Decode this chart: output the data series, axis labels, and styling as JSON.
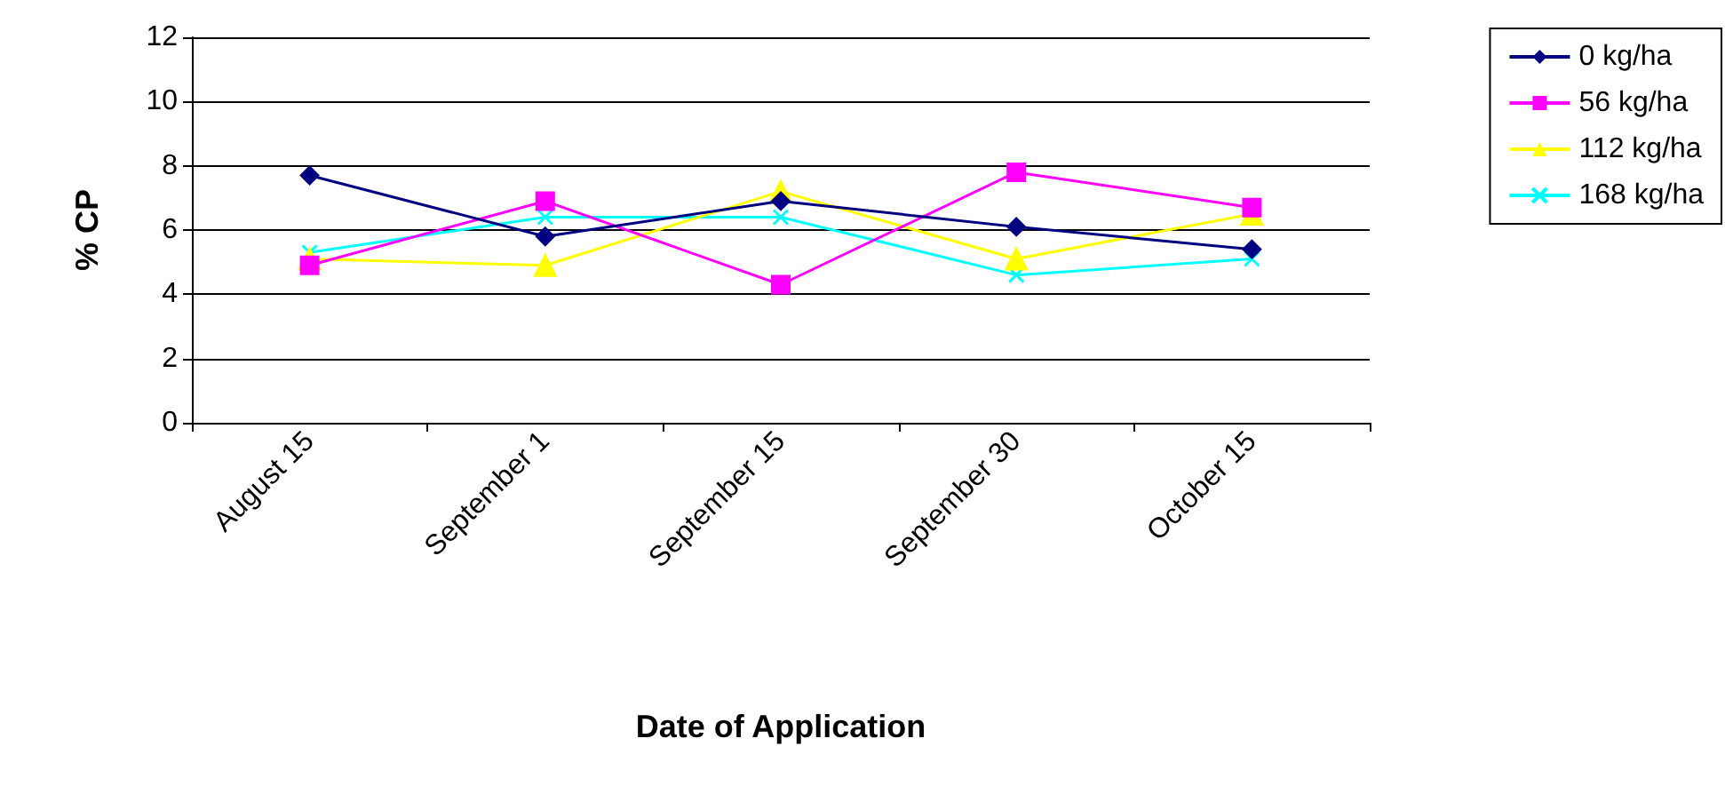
{
  "chart_data": {
    "type": "line",
    "xlabel": "Date of Application",
    "ylabel": "% CP",
    "categories": [
      "August 15",
      "September 1",
      "September 15",
      "September 30",
      "October 15"
    ],
    "series": [
      {
        "name": "0 kg/ha",
        "color": "#000080",
        "marker": "diamond",
        "values": [
          7.7,
          5.8,
          6.9,
          6.1,
          5.4
        ]
      },
      {
        "name": "56 kg/ha",
        "color": "#ff00ff",
        "marker": "square",
        "values": [
          4.9,
          6.9,
          4.3,
          7.8,
          6.7
        ]
      },
      {
        "name": "112 kg/ha",
        "color": "#ffff00",
        "marker": "triangle",
        "values": [
          5.1,
          4.9,
          7.2,
          5.1,
          6.5
        ]
      },
      {
        "name": "168 kg/ha",
        "color": "#00ffff",
        "marker": "cross",
        "values": [
          5.3,
          6.4,
          6.4,
          4.6,
          5.1
        ]
      }
    ],
    "ylim": [
      0,
      12
    ],
    "yticks": [
      0,
      2,
      4,
      6,
      8,
      10,
      12
    ],
    "grid": "y",
    "legend": "right",
    "line_style": "solid"
  }
}
